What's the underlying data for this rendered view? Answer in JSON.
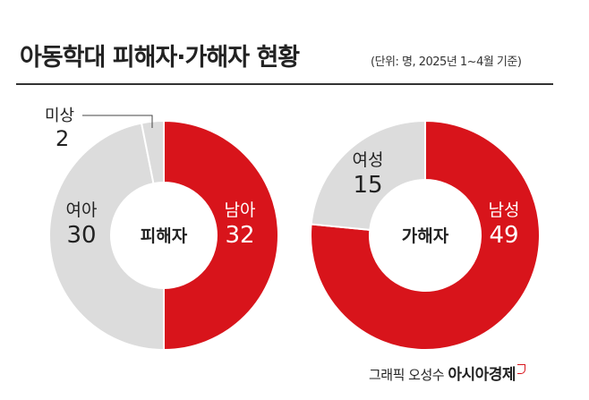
{
  "title": "아동학대 피해자·가해자 현황",
  "unit_note": "(단위: 명, 2025년 1~4월 기준)",
  "colors": {
    "accent": "#d8141b",
    "gray": "#dcdcdc",
    "text": "#222222"
  },
  "chart_data": [
    {
      "type": "pie",
      "title": "피해자",
      "categories": [
        "남아",
        "여아",
        "미상"
      ],
      "values": [
        32,
        30,
        2
      ],
      "series_colors": [
        "#d8141b",
        "#dcdcdc",
        "#dcdcdc"
      ]
    },
    {
      "type": "pie",
      "title": "가해자",
      "categories": [
        "남성",
        "여성"
      ],
      "values": [
        49,
        15
      ],
      "series_colors": [
        "#d8141b",
        "#dcdcdc"
      ]
    }
  ],
  "credit": {
    "prefix": "그래픽 오성수",
    "brand": "아시아경제"
  }
}
